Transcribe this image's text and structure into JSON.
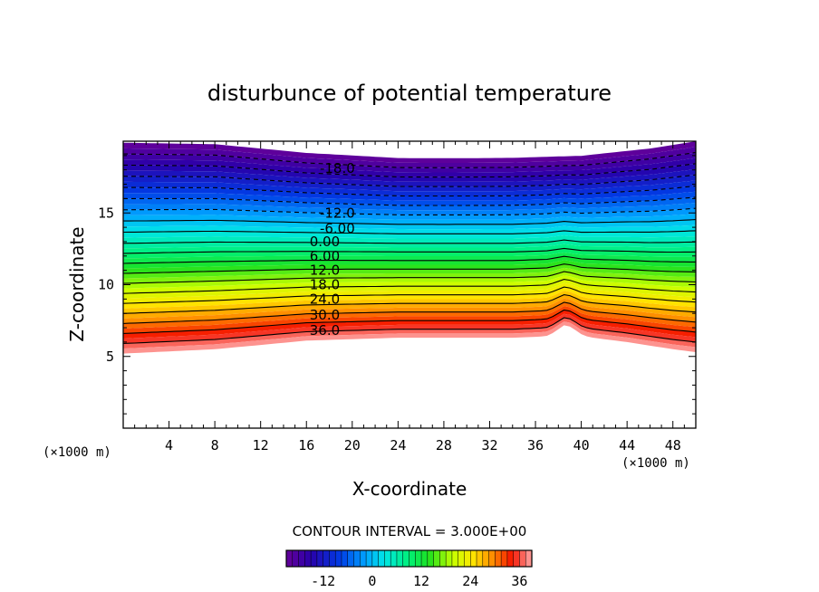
{
  "chart_data": {
    "type": "contour",
    "title": "disturbunce of potential temperature",
    "xlabel": "X-coordinate",
    "ylabel": "Z-coordinate",
    "x_unit": "(×1000 m)",
    "y_unit": "(×1000 m)",
    "xlim": [
      0,
      50
    ],
    "ylim": [
      0,
      20
    ],
    "x_ticks": [
      4,
      8,
      12,
      16,
      20,
      24,
      28,
      32,
      36,
      40,
      44,
      48
    ],
    "y_ticks": [
      5,
      10,
      15
    ],
    "contour_interval_text": "CONTOUR INTERVAL = 3.000E+00",
    "value_range": [
      -21,
      39
    ],
    "bottom_profile": [
      [
        0,
        5.2
      ],
      [
        8,
        5.5
      ],
      [
        16,
        6.1
      ],
      [
        24,
        6.3
      ],
      [
        34,
        6.3
      ],
      [
        37,
        6.4
      ],
      [
        38.5,
        6.7
      ],
      [
        40,
        6.4
      ],
      [
        44,
        6.0
      ],
      [
        48,
        5.5
      ],
      [
        50,
        5.3
      ]
    ],
    "top_profile": [
      [
        0,
        19.9
      ],
      [
        8,
        19.8
      ],
      [
        16,
        19.2
      ],
      [
        24,
        18.9
      ],
      [
        34,
        18.9
      ],
      [
        40,
        19.0
      ],
      [
        46,
        19.5
      ],
      [
        50,
        20.0
      ]
    ],
    "contour_labels": [
      {
        "text": "-18.0",
        "x": 18.7,
        "z": 18.1
      },
      {
        "text": "-12.0",
        "x": 18.7,
        "z": 15.0
      },
      {
        "text": "-6.00",
        "x": 18.7,
        "z": 13.9
      },
      {
        "text": "0.00",
        "x": 17.6,
        "z": 13.0
      },
      {
        "text": "6.00",
        "x": 17.6,
        "z": 12.0
      },
      {
        "text": "12.0",
        "x": 17.6,
        "z": 11.0
      },
      {
        "text": "18.0",
        "x": 17.6,
        "z": 10.0
      },
      {
        "text": "24.0",
        "x": 17.6,
        "z": 9.0
      },
      {
        "text": "30.0",
        "x": 17.6,
        "z": 7.9
      },
      {
        "text": "36.0",
        "x": 17.6,
        "z": 6.8
      }
    ],
    "colorbar": {
      "ticks": [
        -12,
        0,
        12,
        24,
        36
      ],
      "labels": [
        "-12",
        "0",
        "12",
        "24",
        "36"
      ]
    }
  }
}
